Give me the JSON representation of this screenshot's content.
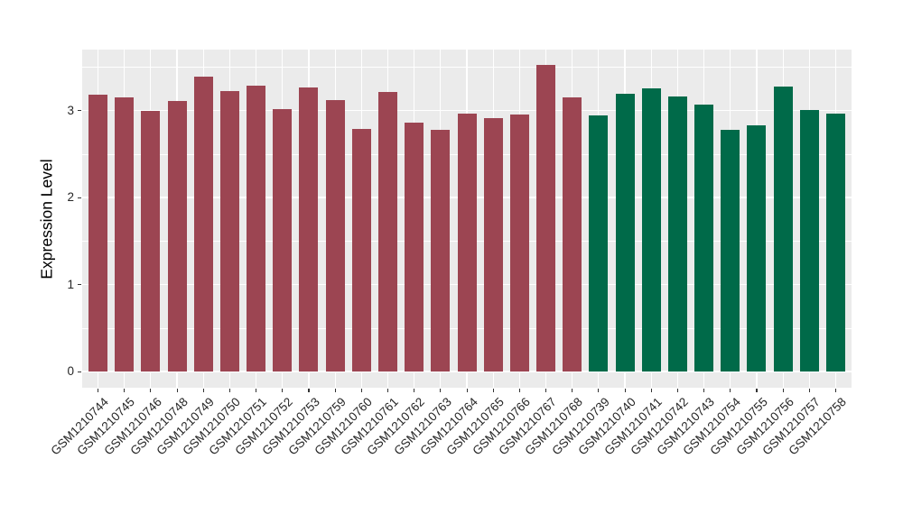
{
  "figure": {
    "background": "#FFFFFF"
  },
  "chart_data": {
    "type": "bar",
    "title": "",
    "xlabel": "",
    "ylabel": "Expression Level",
    "categories": [
      "GSM1210744",
      "GSM1210745",
      "GSM1210746",
      "GSM1210748",
      "GSM1210749",
      "GSM1210750",
      "GSM1210751",
      "GSM1210752",
      "GSM1210753",
      "GSM1210759",
      "GSM1210760",
      "GSM1210761",
      "GSM1210762",
      "GSM1210763",
      "GSM1210764",
      "GSM1210765",
      "GSM1210766",
      "GSM1210767",
      "GSM1210768",
      "GSM1210739",
      "GSM1210740",
      "GSM1210741",
      "GSM1210742",
      "GSM1210743",
      "GSM1210754",
      "GSM1210755",
      "GSM1210756",
      "GSM1210757",
      "GSM1210758"
    ],
    "values": [
      3.18,
      3.15,
      3.0,
      3.11,
      3.39,
      3.22,
      3.28,
      3.02,
      3.26,
      3.12,
      2.79,
      3.21,
      2.86,
      2.78,
      2.96,
      2.91,
      2.95,
      3.52,
      3.15,
      2.94,
      3.19,
      3.25,
      3.16,
      3.07,
      2.78,
      2.83,
      3.27,
      3.01,
      2.96
    ],
    "groups": [
      "group1",
      "group1",
      "group1",
      "group1",
      "group1",
      "group1",
      "group1",
      "group1",
      "group1",
      "group1",
      "group1",
      "group1",
      "group1",
      "group1",
      "group1",
      "group1",
      "group1",
      "group1",
      "group1",
      "group2",
      "group2",
      "group2",
      "group2",
      "group2",
      "group2",
      "group2",
      "group2",
      "group2",
      "group2"
    ],
    "palette": {
      "group1": "#9C4552",
      "group2": "#006A49"
    },
    "panel_bg": "#EBEBEB",
    "grid_color": "#FFFFFF",
    "axis_text_color": "#262626",
    "tick_color": "#333333",
    "yticks": [
      0,
      1,
      2,
      3
    ],
    "yticks_minor": [
      0.5,
      1.5,
      2.5,
      3.5
    ],
    "ylim": [
      -0.18,
      3.7
    ],
    "legend": "none",
    "grid": "major and minor horizontal white, major vertical white at bar centers",
    "x_label_angle": 45
  }
}
